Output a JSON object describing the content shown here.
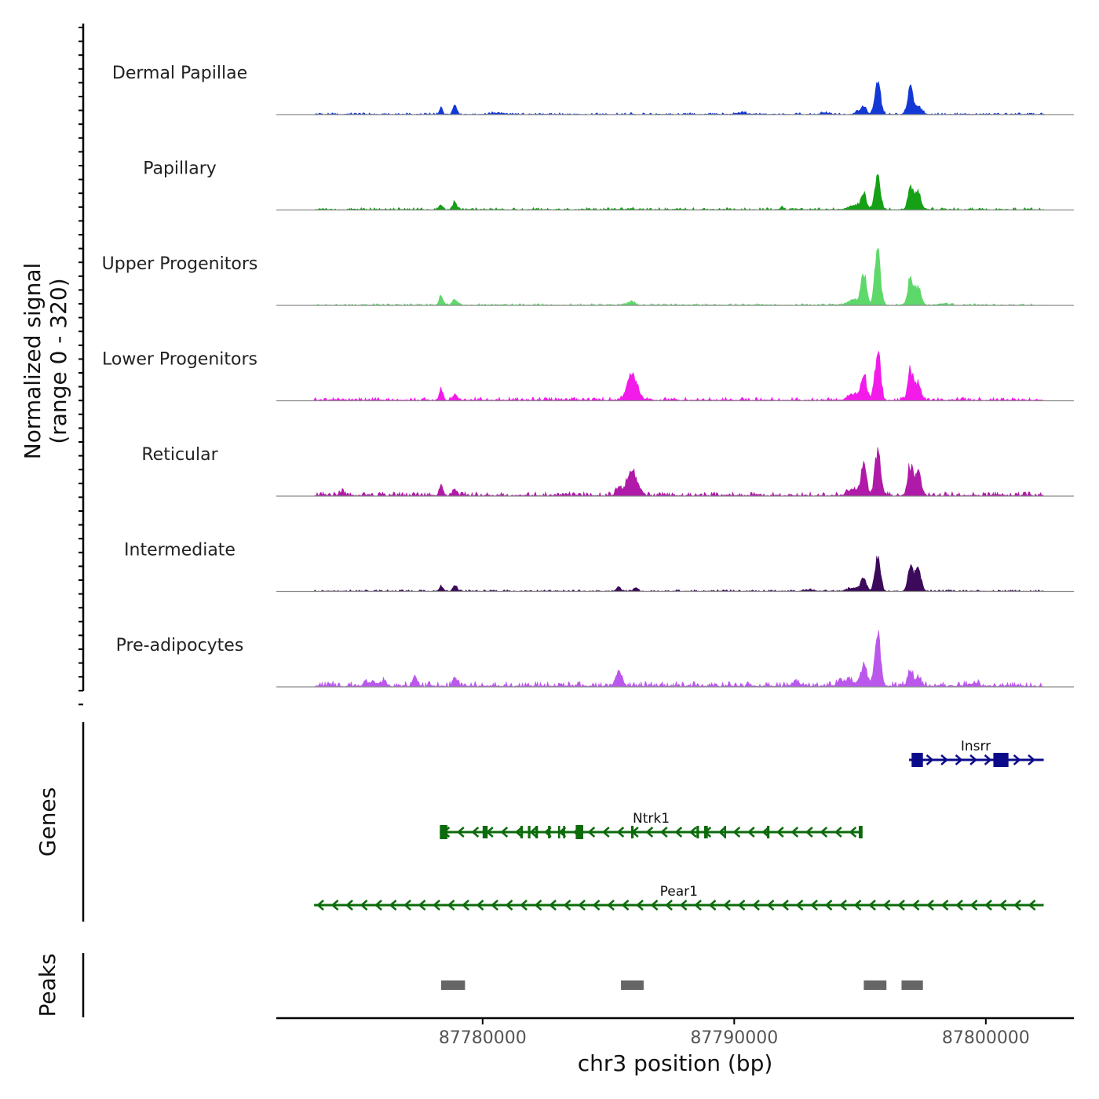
{
  "chart_data": {
    "type": "area",
    "title": "",
    "xlabel": "chr3 position (bp)",
    "ylabel": "Normalized signal",
    "ylabel_range": "(range 0 - 320)",
    "ylim": [
      0,
      320
    ],
    "xlim": [
      87771800,
      87803500
    ],
    "x_ticks": [
      87780000,
      87790000,
      87800000
    ],
    "x_tick_labels": [
      "87780000",
      "87790000",
      "87800000"
    ],
    "region": [
      87773300,
      87802300
    ],
    "tracks": [
      {
        "name": "Dermal Papillae",
        "color": "#1238d6",
        "bg": 3.0,
        "peaks": [
          [
            87778350,
            40,
            60
          ],
          [
            87778900,
            55,
            80
          ],
          [
            87785900,
            4,
            60
          ],
          [
            87794900,
            22,
            90
          ],
          [
            87795150,
            55,
            90
          ],
          [
            87795700,
            218,
            110
          ],
          [
            87797000,
            178,
            100
          ],
          [
            87797300,
            45,
            150
          ],
          [
            87780500,
            8,
            200
          ],
          [
            87790300,
            9,
            200
          ],
          [
            87793600,
            10,
            150
          ]
        ]
      },
      {
        "name": "Papillary",
        "color": "#15a015",
        "bg": 4.0,
        "peaks": [
          [
            87778350,
            32,
            70
          ],
          [
            87778900,
            50,
            80
          ],
          [
            87785900,
            6,
            80
          ],
          [
            87791900,
            22,
            60
          ],
          [
            87795150,
            96,
            100
          ],
          [
            87795700,
            210,
            110
          ],
          [
            87797000,
            132,
            100
          ],
          [
            87797300,
            110,
            120
          ],
          [
            87794800,
            26,
            250
          ]
        ]
      },
      {
        "name": "Upper Progenitors",
        "color": "#5ed86a",
        "bg": 3.0,
        "peaks": [
          [
            87778350,
            56,
            80
          ],
          [
            87778900,
            36,
            90
          ],
          [
            87785900,
            20,
            130
          ],
          [
            87795150,
            200,
            100
          ],
          [
            87795700,
            338,
            110
          ],
          [
            87797000,
            170,
            100
          ],
          [
            87797300,
            110,
            120
          ],
          [
            87794800,
            35,
            250
          ],
          [
            87798300,
            10,
            200
          ]
        ]
      },
      {
        "name": "Lower Progenitors",
        "color": "#f21bea",
        "bg": 6.0,
        "peaks": [
          [
            87778350,
            78,
            70
          ],
          [
            87778900,
            40,
            90
          ],
          [
            87785950,
            158,
            200
          ],
          [
            87795150,
            152,
            100
          ],
          [
            87795700,
            300,
            110
          ],
          [
            87797000,
            196,
            100
          ],
          [
            87797300,
            100,
            120
          ],
          [
            87794800,
            40,
            250
          ],
          [
            87787600,
            10,
            100
          ]
        ]
      },
      {
        "name": "Reticular",
        "color": "#b01aa8",
        "bg": 7.0,
        "peaks": [
          [
            87774400,
            25,
            80
          ],
          [
            87778350,
            65,
            70
          ],
          [
            87778900,
            40,
            90
          ],
          [
            87785950,
            158,
            200
          ],
          [
            87785400,
            50,
            100
          ],
          [
            87795150,
            175,
            100
          ],
          [
            87795700,
            274,
            110
          ],
          [
            87797000,
            182,
            100
          ],
          [
            87797300,
            150,
            120
          ],
          [
            87794800,
            40,
            250
          ]
        ]
      },
      {
        "name": "Intermediate",
        "color": "#3c0a5a",
        "bg": 3.0,
        "peaks": [
          [
            87778350,
            28,
            80
          ],
          [
            87778900,
            38,
            80
          ],
          [
            87785400,
            30,
            80
          ],
          [
            87786100,
            20,
            80
          ],
          [
            87793000,
            10,
            200
          ],
          [
            87795150,
            78,
            100
          ],
          [
            87795700,
            200,
            110
          ],
          [
            87797000,
            158,
            100
          ],
          [
            87797300,
            146,
            120
          ],
          [
            87794800,
            24,
            250
          ]
        ]
      },
      {
        "name": "Pre-adipocytes",
        "color": "#bb58ec",
        "bg": 9.0,
        "peaks": [
          [
            87776000,
            24,
            150
          ],
          [
            87777300,
            62,
            80
          ],
          [
            87778900,
            55,
            80
          ],
          [
            87785400,
            90,
            120
          ],
          [
            87795150,
            118,
            120
          ],
          [
            87795700,
            330,
            110
          ],
          [
            87797000,
            86,
            100
          ],
          [
            87797300,
            48,
            120
          ],
          [
            87794500,
            35,
            300
          ],
          [
            87775500,
            22,
            200
          ],
          [
            87792500,
            22,
            200
          ],
          [
            87799500,
            18,
            200
          ]
        ]
      }
    ],
    "genes": [
      {
        "name": "Insrr",
        "start": 87796950,
        "end": 87802300,
        "strand": "+",
        "color": "#0b0b8a",
        "exons": [
          [
            87797050,
            87797500
          ],
          [
            87800300,
            87800900
          ]
        ]
      },
      {
        "name": "Ntrk1",
        "start": 87778300,
        "end": 87795100,
        "strand": "-",
        "color": "#0b6b0b",
        "exons": [
          [
            87778300,
            87778600
          ],
          [
            87780000,
            87780200
          ],
          [
            87781500,
            87781600
          ],
          [
            87781800,
            87781900
          ],
          [
            87782100,
            87782200
          ],
          [
            87782600,
            87782700
          ],
          [
            87783000,
            87783050
          ],
          [
            87783200,
            87783250
          ],
          [
            87783700,
            87784000
          ],
          [
            87785900,
            87786000
          ],
          [
            87788500,
            87788600
          ],
          [
            87788800,
            87788950
          ],
          [
            87789600,
            87789650
          ],
          [
            87791300,
            87791400
          ],
          [
            87794950,
            87795100
          ]
        ]
      },
      {
        "name": "Pear1",
        "start": 87773300,
        "end": 87802300,
        "strand": "-",
        "color": "#0b6b0b",
        "exons": []
      }
    ],
    "track_labels": {
      "genes": "Genes",
      "peaks": "Peaks"
    },
    "peaks_regions": [
      [
        87778350,
        87779300
      ],
      [
        87785500,
        87786400
      ],
      [
        87795150,
        87796050
      ],
      [
        87796650,
        87797500
      ]
    ],
    "peak_color": "#666666"
  }
}
